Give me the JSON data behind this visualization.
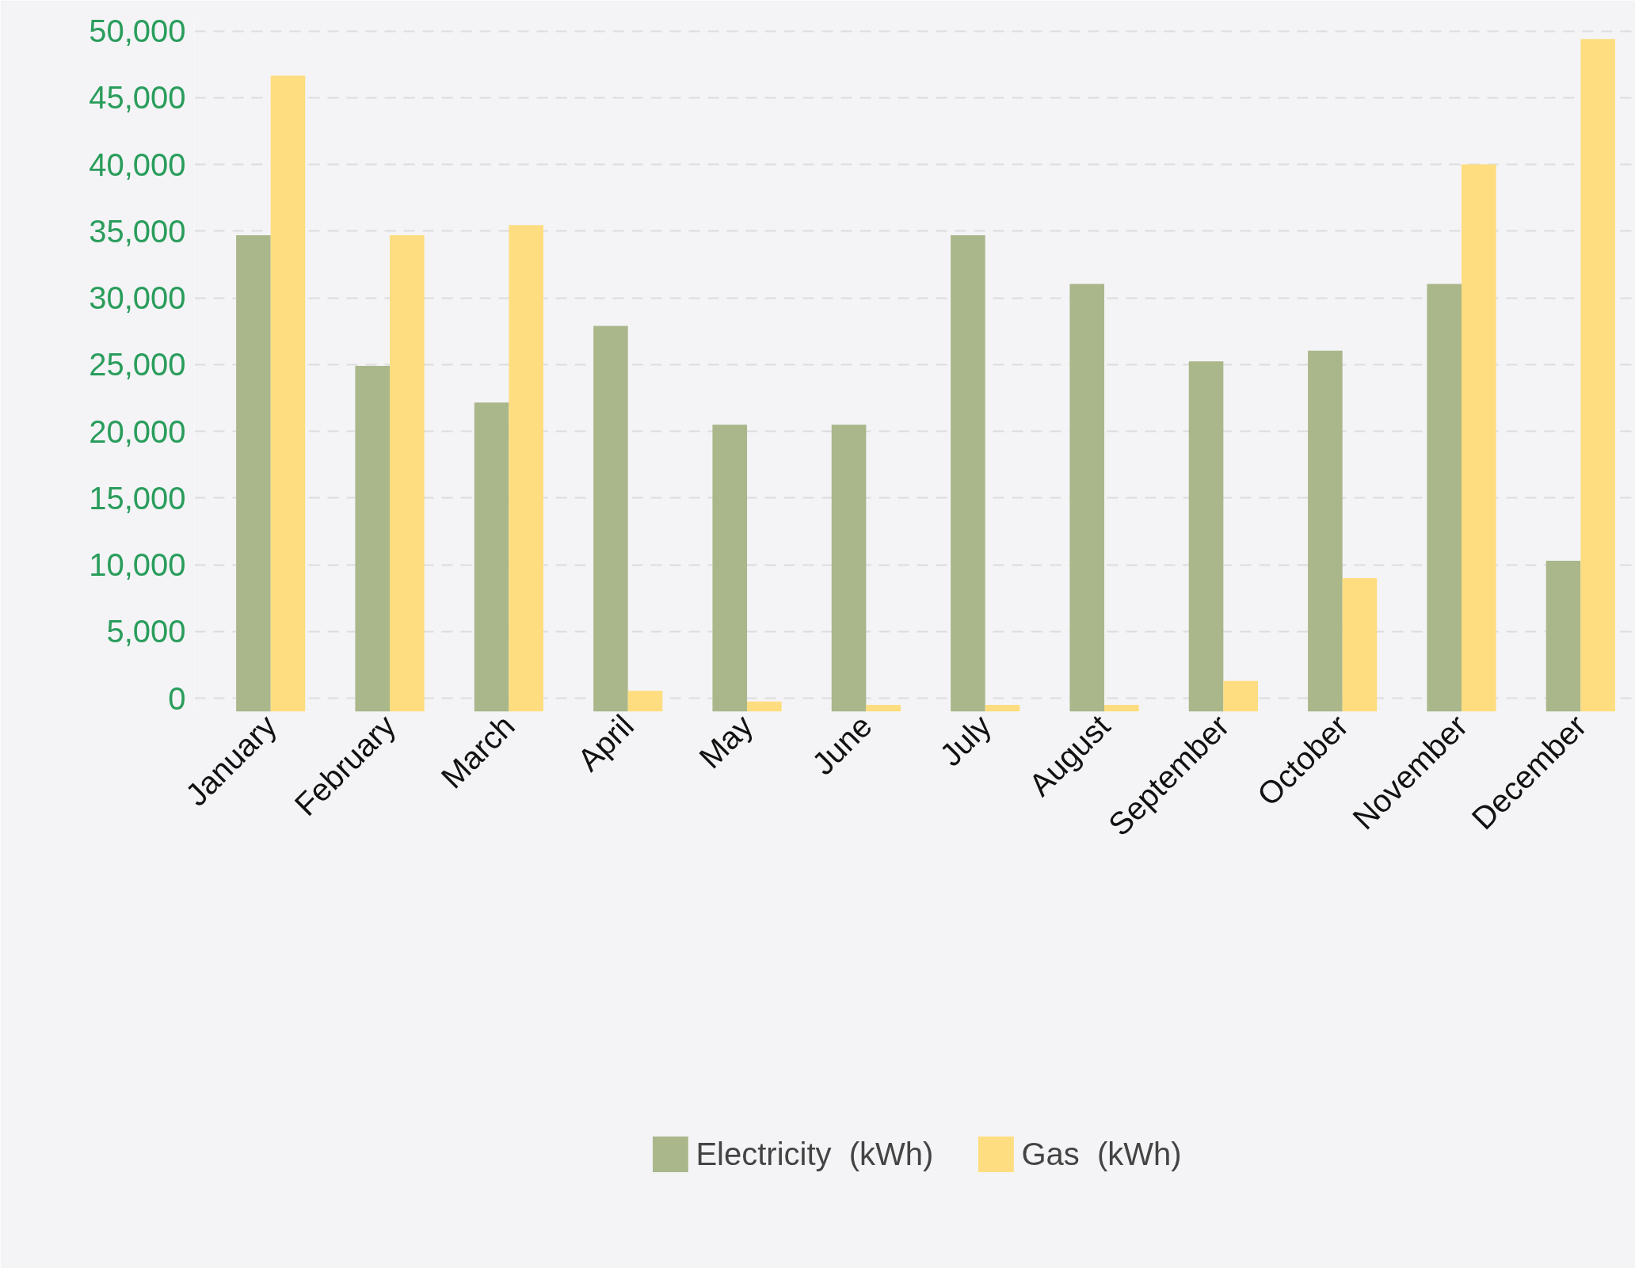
{
  "chart_data": {
    "type": "bar",
    "categories": [
      "January",
      "February",
      "March",
      "April",
      "May",
      "June",
      "July",
      "August",
      "September",
      "October",
      "November",
      "December"
    ],
    "series": [
      {
        "name": "Electricity  (kWh)",
        "color": "#a9b78a",
        "base": [
          -1000,
          -1000,
          -1000,
          -1000,
          -1000,
          -1000,
          -1000,
          -1000,
          -1000,
          -1000,
          -1000,
          -1000
        ],
        "values": [
          35700,
          25900,
          23150,
          28900,
          21500,
          21500,
          35700,
          32050,
          26250,
          27050,
          32050,
          11300
        ]
      },
      {
        "name": "Gas  (kWh)",
        "color": "#fddd7f",
        "base": [
          -1000,
          -1000,
          -1000,
          -1000,
          -1000,
          -1000,
          -1000,
          -1000,
          -1000,
          -1000,
          -1000,
          -1000
        ],
        "values": [
          47650,
          35700,
          36450,
          1560,
          750,
          500,
          500,
          500,
          2300,
          10000,
          41000,
          50400
        ]
      }
    ],
    "ylim": [
      -1000,
      51100
    ],
    "yticks": [
      0,
      {
        "value": 5000,
        "label": "5,000"
      },
      {
        "value": 10000,
        "label": "10,000"
      },
      {
        "value": 15000,
        "label": "15,000"
      },
      {
        "value": 20000,
        "label": "20,000"
      },
      {
        "value": 25000,
        "label": "25,000"
      },
      {
        "value": 30000,
        "label": "30,000"
      },
      {
        "value": 35000,
        "label": "35,000"
      },
      {
        "value": 40000,
        "label": "40,000"
      },
      {
        "value": 45000,
        "label": "45,000"
      },
      {
        "value": 50000,
        "label": "50,000"
      }
    ],
    "grid": "y",
    "legend": "bottom"
  }
}
